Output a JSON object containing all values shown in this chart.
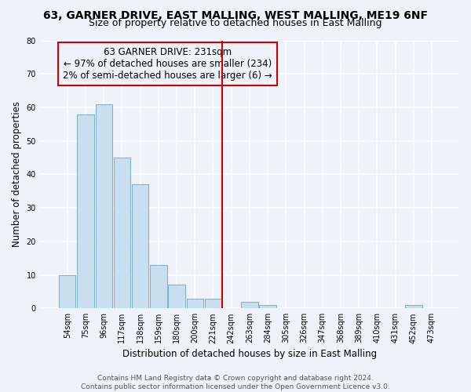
{
  "title": "63, GARNER DRIVE, EAST MALLING, WEST MALLING, ME19 6NF",
  "subtitle": "Size of property relative to detached houses in East Malling",
  "xlabel": "Distribution of detached houses by size in East Malling",
  "ylabel": "Number of detached properties",
  "bar_labels": [
    "54sqm",
    "75sqm",
    "96sqm",
    "117sqm",
    "138sqm",
    "159sqm",
    "180sqm",
    "200sqm",
    "221sqm",
    "242sqm",
    "263sqm",
    "284sqm",
    "305sqm",
    "326sqm",
    "347sqm",
    "368sqm",
    "389sqm",
    "410sqm",
    "431sqm",
    "452sqm",
    "473sqm"
  ],
  "bar_values": [
    10,
    58,
    61,
    45,
    37,
    13,
    7,
    3,
    3,
    0,
    2,
    1,
    0,
    0,
    0,
    0,
    0,
    0,
    0,
    1,
    0
  ],
  "bar_color": "#c8dff0",
  "bar_edge_color": "#7ab0cc",
  "vline_x": 8.5,
  "vline_color": "#cc0000",
  "annotation_text": "63 GARNER DRIVE: 231sqm\n← 97% of detached houses are smaller (234)\n2% of semi-detached houses are larger (6) →",
  "annotation_box_edge": "#cc0000",
  "annotation_fontsize": 8.5,
  "ylim": [
    0,
    80
  ],
  "yticks": [
    0,
    10,
    20,
    30,
    40,
    50,
    60,
    70,
    80
  ],
  "footer_text": "Contains HM Land Registry data © Crown copyright and database right 2024.\nContains public sector information licensed under the Open Government Licence v3.0.",
  "bg_color": "#eef2fa",
  "grid_color": "#ffffff",
  "title_fontsize": 10,
  "subtitle_fontsize": 9,
  "xlabel_fontsize": 8.5,
  "ylabel_fontsize": 8.5,
  "tick_fontsize": 7,
  "footer_fontsize": 6.5
}
